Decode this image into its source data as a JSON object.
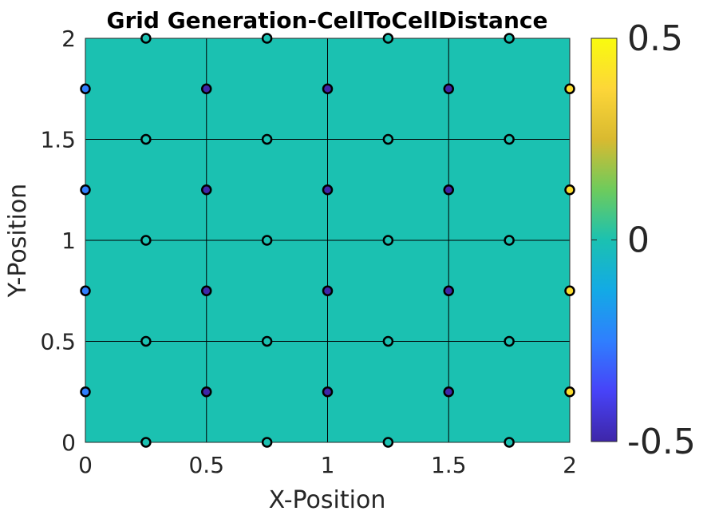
{
  "chart_data": {
    "type": "scatter",
    "title": "Grid Generation-CellToCellDistance",
    "xlabel": "X-Position",
    "ylabel": "Y-Position",
    "xlim": [
      0,
      2
    ],
    "ylim": [
      0,
      2
    ],
    "x_ticks": [
      "0",
      "0.5",
      "1",
      "1.5",
      "2"
    ],
    "y_ticks": [
      "0",
      "0.5",
      "1",
      "1.5",
      "2"
    ],
    "x_tick_values": [
      0,
      0.5,
      1,
      1.5,
      2
    ],
    "y_tick_values": [
      0,
      0.5,
      1,
      1.5,
      2
    ],
    "grid": true,
    "background_value": 0,
    "colorbar": {
      "range": [
        -0.5,
        0.5
      ],
      "tick_labels": [
        "0.5",
        "0",
        "-0.5"
      ],
      "tick_values": [
        0.5,
        0,
        -0.5
      ],
      "colormap": [
        "#3e26a8",
        "#4743f8",
        "#2f7ffe",
        "#13aae5",
        "#1bc1b1",
        "#6ecb5c",
        "#d9ba30",
        "#fdd638",
        "#f9fb0e"
      ]
    },
    "points": [
      {
        "x": 0.25,
        "y": 2.0,
        "value": 0
      },
      {
        "x": 0.75,
        "y": 2.0,
        "value": 0
      },
      {
        "x": 1.25,
        "y": 2.0,
        "value": 0
      },
      {
        "x": 1.75,
        "y": 2.0,
        "value": 0
      },
      {
        "x": 0.25,
        "y": 1.5,
        "value": 0
      },
      {
        "x": 0.75,
        "y": 1.5,
        "value": 0
      },
      {
        "x": 1.25,
        "y": 1.5,
        "value": 0
      },
      {
        "x": 1.75,
        "y": 1.5,
        "value": 0
      },
      {
        "x": 0.25,
        "y": 1.0,
        "value": 0
      },
      {
        "x": 0.75,
        "y": 1.0,
        "value": 0
      },
      {
        "x": 1.25,
        "y": 1.0,
        "value": 0
      },
      {
        "x": 1.75,
        "y": 1.0,
        "value": 0
      },
      {
        "x": 0.25,
        "y": 0.5,
        "value": 0
      },
      {
        "x": 0.75,
        "y": 0.5,
        "value": 0
      },
      {
        "x": 1.25,
        "y": 0.5,
        "value": 0
      },
      {
        "x": 1.75,
        "y": 0.5,
        "value": 0
      },
      {
        "x": 0.25,
        "y": 0.0,
        "value": 0
      },
      {
        "x": 0.75,
        "y": 0.0,
        "value": 0
      },
      {
        "x": 1.25,
        "y": 0.0,
        "value": 0
      },
      {
        "x": 1.75,
        "y": 0.0,
        "value": 0
      },
      {
        "x": 0.0,
        "y": 1.75,
        "value": -0.25
      },
      {
        "x": 0.0,
        "y": 1.25,
        "value": -0.25
      },
      {
        "x": 0.0,
        "y": 0.75,
        "value": -0.25
      },
      {
        "x": 0.0,
        "y": 0.25,
        "value": -0.25
      },
      {
        "x": 0.5,
        "y": 1.75,
        "value": -0.5
      },
      {
        "x": 0.5,
        "y": 1.25,
        "value": -0.5
      },
      {
        "x": 0.5,
        "y": 0.75,
        "value": -0.5
      },
      {
        "x": 0.5,
        "y": 0.25,
        "value": -0.5
      },
      {
        "x": 1.0,
        "y": 1.75,
        "value": -0.5
      },
      {
        "x": 1.0,
        "y": 1.25,
        "value": -0.5
      },
      {
        "x": 1.0,
        "y": 0.75,
        "value": -0.5
      },
      {
        "x": 1.0,
        "y": 0.25,
        "value": -0.5
      },
      {
        "x": 1.5,
        "y": 1.75,
        "value": -0.5
      },
      {
        "x": 1.5,
        "y": 1.25,
        "value": -0.5
      },
      {
        "x": 1.5,
        "y": 0.75,
        "value": -0.5
      },
      {
        "x": 1.5,
        "y": 0.25,
        "value": -0.5
      },
      {
        "x": 2.0,
        "y": 1.75,
        "value": 0.4
      },
      {
        "x": 2.0,
        "y": 1.25,
        "value": 0.4
      },
      {
        "x": 2.0,
        "y": 0.75,
        "value": 0.4
      },
      {
        "x": 2.0,
        "y": 0.25,
        "value": 0.4
      }
    ]
  }
}
